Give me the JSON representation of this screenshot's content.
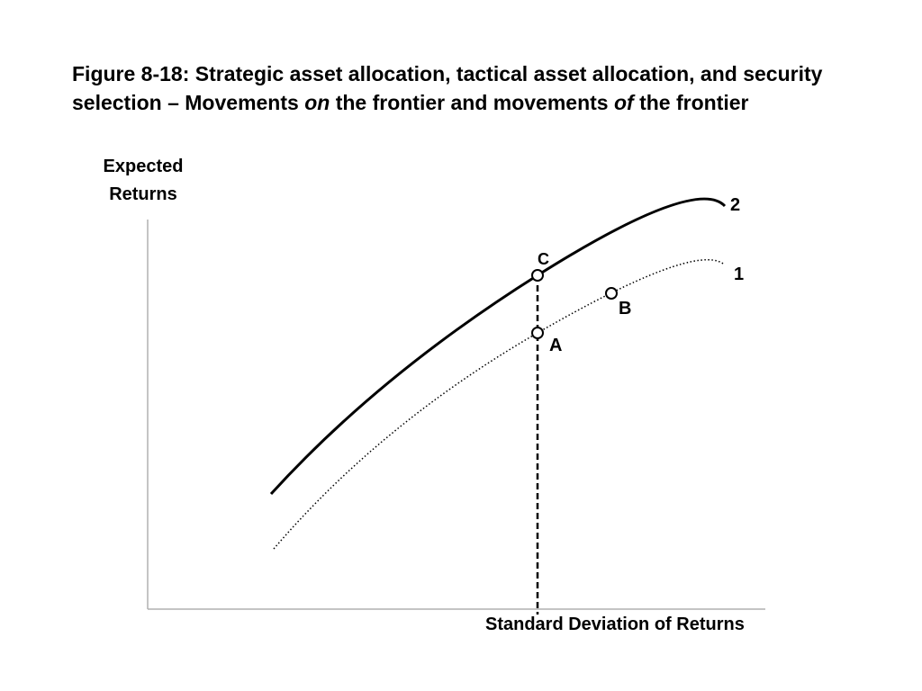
{
  "title": {
    "part1": "Figure 8-18: Strategic asset allocation, tactical asset allocation, and security selection – Movements ",
    "emph1": "on",
    "part2": " the frontier and movements ",
    "emph2": "of",
    "part3": " the frontier"
  },
  "axes": {
    "y_label_line1": "Expected",
    "y_label_line2": "Returns",
    "x_label": "Standard Deviation of Returns"
  },
  "curves": {
    "upper_label": "2",
    "lower_label": "1"
  },
  "points": {
    "a": "A",
    "b": "B",
    "c": "C"
  }
}
